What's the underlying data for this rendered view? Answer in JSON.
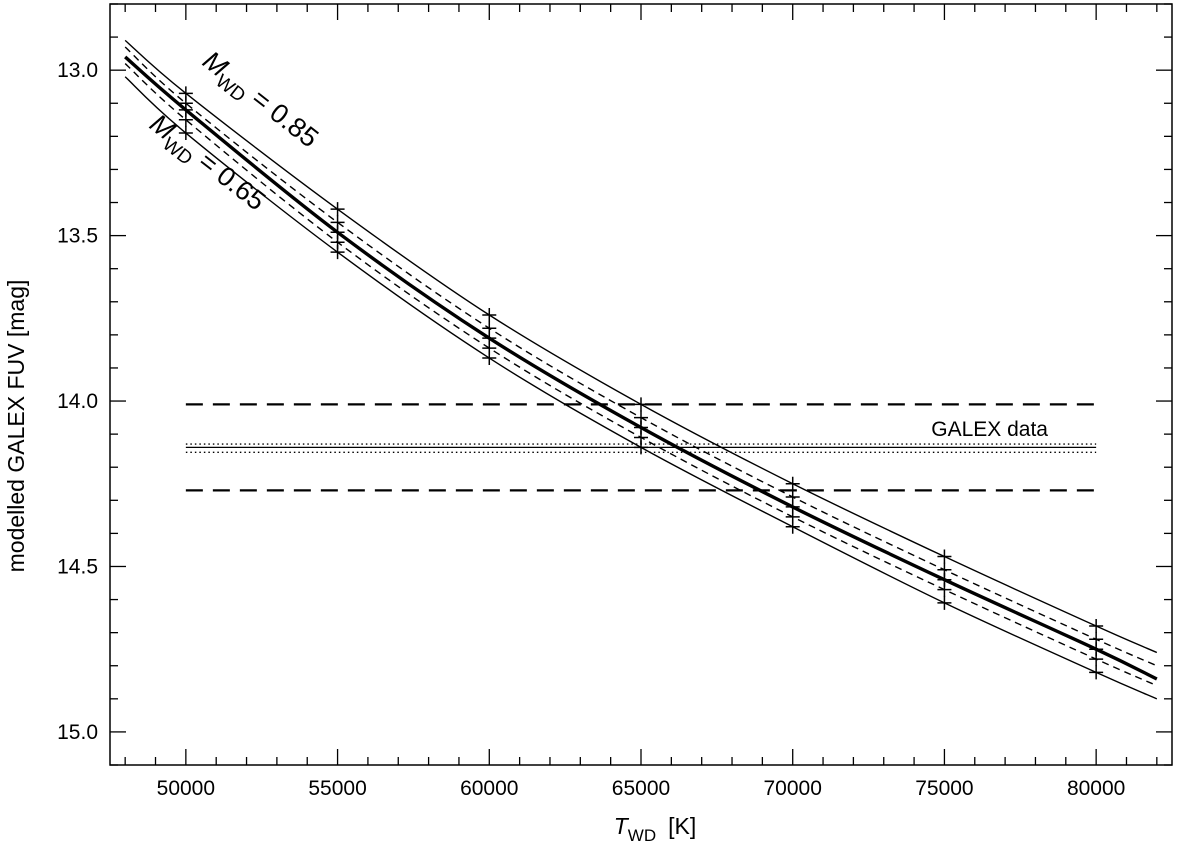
{
  "chart_data": {
    "type": "line",
    "xlabel": {
      "symbol": "T",
      "subscript": "WD",
      "unit": "[K]"
    },
    "ylabel": "modelled GALEX FUV  [mag]",
    "xlim": [
      47500,
      82500
    ],
    "ylim": [
      15.1,
      12.8
    ],
    "y_inverted": true,
    "x_ticks": [
      50000,
      55000,
      60000,
      65000,
      70000,
      75000,
      80000
    ],
    "x_tick_labels": [
      "50000",
      "55000",
      "60000",
      "65000",
      "70000",
      "75000",
      "80000"
    ],
    "x_minor_step": 1000,
    "y_ticks": [
      13.0,
      13.5,
      14.0,
      14.5,
      15.0
    ],
    "y_tick_labels": [
      "13.0",
      "13.5",
      "14.0",
      "14.5",
      "15.0"
    ],
    "y_minor_step": 0.1,
    "grid": false,
    "annotations": [
      {
        "symbol": "M",
        "subscript": "WD",
        "text": " = 0.85"
      },
      {
        "symbol": "M",
        "subscript": "WD",
        "text": " = 0.65"
      }
    ],
    "series": [
      {
        "style": "solid-thin",
        "x": [
          48000,
          50000,
          55000,
          60000,
          65000,
          70000,
          75000,
          80000,
          82000
        ],
        "y": [
          12.91,
          13.07,
          13.42,
          13.74,
          14.01,
          14.25,
          14.47,
          14.68,
          14.76
        ]
      },
      {
        "style": "dashed-thin",
        "x": [
          48000,
          50000,
          55000,
          60000,
          65000,
          70000,
          75000,
          80000,
          82000
        ],
        "y": [
          12.93,
          13.1,
          13.46,
          13.78,
          14.05,
          14.29,
          14.51,
          14.72,
          14.8
        ]
      },
      {
        "style": "solid-thick",
        "x": [
          48000,
          50000,
          55000,
          60000,
          65000,
          70000,
          75000,
          80000,
          82000
        ],
        "y": [
          12.96,
          13.12,
          13.49,
          13.81,
          14.08,
          14.32,
          14.54,
          14.75,
          14.84
        ]
      },
      {
        "style": "dashed-thin",
        "x": [
          48000,
          50000,
          55000,
          60000,
          65000,
          70000,
          75000,
          80000,
          82000
        ],
        "y": [
          12.98,
          13.15,
          13.52,
          13.84,
          14.11,
          14.35,
          14.57,
          14.78,
          14.86
        ]
      },
      {
        "style": "solid-thin",
        "x": [
          48000,
          50000,
          55000,
          60000,
          65000,
          70000,
          75000,
          80000,
          82000
        ],
        "y": [
          13.02,
          13.19,
          13.55,
          13.87,
          14.14,
          14.38,
          14.61,
          14.82,
          14.9
        ]
      }
    ],
    "reference_lines": {
      "label": "GALEX data",
      "x_range": [
        50000,
        80000
      ],
      "value": 14.14,
      "inner_band": [
        14.13,
        14.155
      ],
      "outer_band": [
        14.01,
        14.27
      ]
    }
  }
}
